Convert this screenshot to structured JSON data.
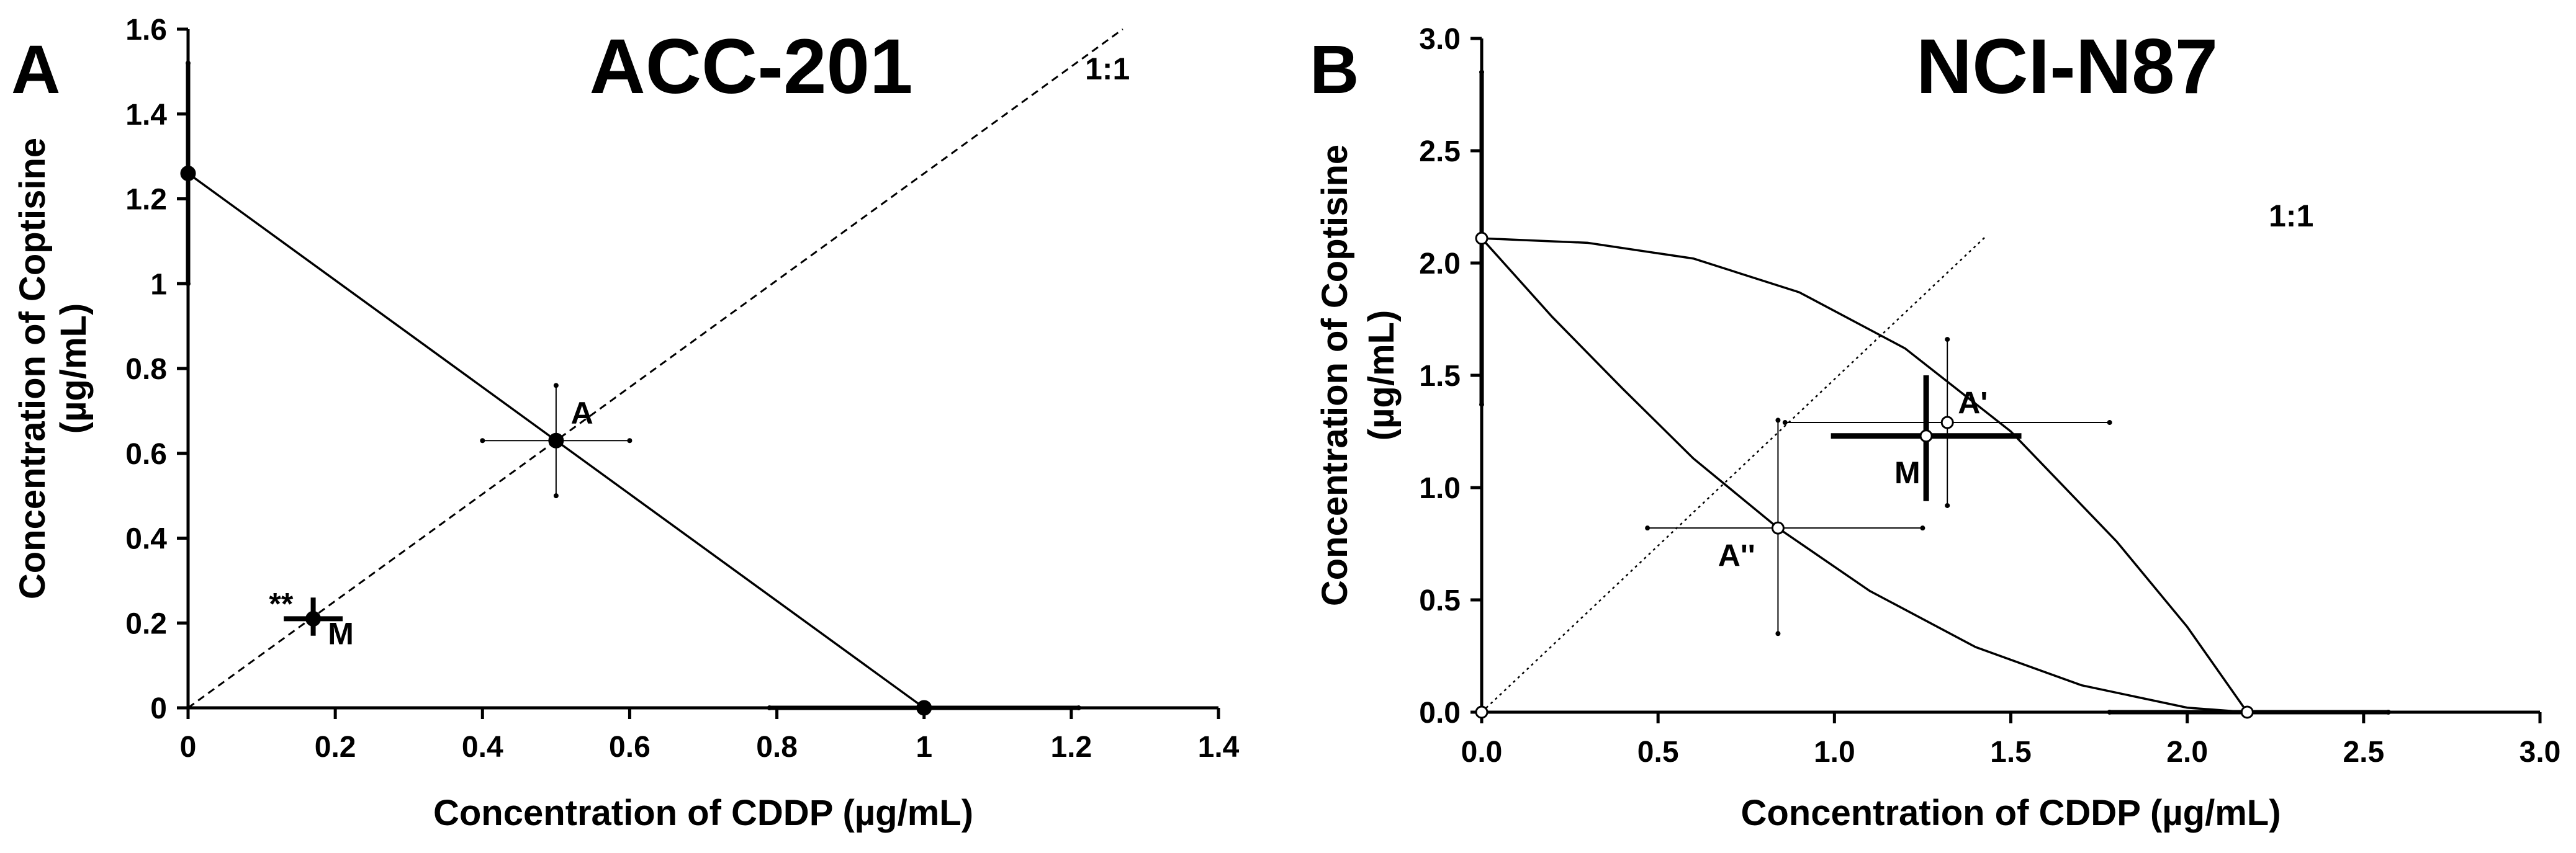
{
  "chart_data": [
    {
      "type": "scatter",
      "panel_label": "A",
      "title": "ACC-201",
      "xlabel": "Concentration of CDDP (µg/mL)",
      "ylabel_line1": "Concentration of Coptisine",
      "ylabel_line2": "(µg/mL)",
      "xlim": [
        0,
        1.4
      ],
      "ylim": [
        0,
        1.6
      ],
      "xticks": [
        0,
        0.2,
        0.4,
        0.6,
        0.8,
        1,
        1.2,
        1.4
      ],
      "xtick_labels": [
        "0",
        "0.2",
        "0.4",
        "0.6",
        "0.8",
        "1",
        "1.2",
        "1.4"
      ],
      "yticks": [
        0,
        0.2,
        0.4,
        0.6,
        0.8,
        1,
        1.2,
        1.4,
        1.6
      ],
      "ytick_labels": [
        "0",
        "0.2",
        "0.4",
        "0.6",
        "0.8",
        "1",
        "1.2",
        "1.4",
        "1.6"
      ],
      "diagonal_label": "1:1",
      "diagonal_end": [
        1.27,
        1.6
      ],
      "additivity_line": [
        [
          0,
          1.26
        ],
        [
          1.0,
          0
        ]
      ],
      "points": [
        {
          "name": "ic50-coptisine",
          "x": 0,
          "y": 1.26,
          "xerr": [
            0,
            0
          ],
          "yerr": [
            1.0,
            1.52
          ]
        },
        {
          "name": "ic50-cddp",
          "x": 1.0,
          "y": 0,
          "xerr": [
            0.79,
            1.21
          ],
          "yerr": [
            0,
            0
          ]
        },
        {
          "name": "A",
          "x": 0.5,
          "y": 0.63,
          "xerr": [
            0.4,
            0.6
          ],
          "yerr": [
            0.5,
            0.76
          ]
        },
        {
          "name": "M",
          "x": 0.17,
          "y": 0.21,
          "xerr": [
            0.13,
            0.21
          ],
          "yerr": [
            0.17,
            0.26
          ]
        }
      ],
      "annotations": [
        {
          "text": "A",
          "x": 0.52,
          "y": 0.67
        },
        {
          "text": "M",
          "x": 0.19,
          "y": 0.15
        },
        {
          "text": "**",
          "x": 0.11,
          "y": 0.22
        }
      ]
    },
    {
      "type": "scatter",
      "panel_label": "B",
      "title": "NCI-N87",
      "xlabel": "Concentration of CDDP (µg/mL)",
      "ylabel_line1": "Concentration of Coptisine",
      "ylabel_line2": "(µg/mL)",
      "xlim": [
        0,
        3.0
      ],
      "ylim": [
        0,
        3.0
      ],
      "xticks": [
        0,
        0.5,
        1.0,
        1.5,
        2.0,
        2.5,
        3.0
      ],
      "xtick_labels": [
        "0.0",
        "0.5",
        "1.0",
        "1.5",
        "2.0",
        "2.5",
        "3.0"
      ],
      "yticks": [
        0,
        0.5,
        1.0,
        1.5,
        2.0,
        2.5,
        3.0
      ],
      "ytick_labels": [
        "0.0",
        "0.5",
        "1.0",
        "1.5",
        "2.0",
        "2.5",
        "3.0"
      ],
      "diagonal_label": "1:1",
      "diagonal_end": [
        1.43,
        2.12
      ],
      "upper_curve": [
        [
          0,
          2.11
        ],
        [
          0.3,
          2.09
        ],
        [
          0.6,
          2.02
        ],
        [
          0.9,
          1.87
        ],
        [
          1.2,
          1.62
        ],
        [
          1.5,
          1.25
        ],
        [
          1.8,
          0.76
        ],
        [
          2.0,
          0.38
        ],
        [
          2.17,
          0
        ]
      ],
      "lower_curve": [
        [
          0,
          2.11
        ],
        [
          0.2,
          1.76
        ],
        [
          0.4,
          1.44
        ],
        [
          0.6,
          1.13
        ],
        [
          0.84,
          0.82
        ],
        [
          1.1,
          0.54
        ],
        [
          1.4,
          0.29
        ],
        [
          1.7,
          0.12
        ],
        [
          2.0,
          0.02
        ],
        [
          2.17,
          0
        ]
      ],
      "points": [
        {
          "name": "ic50-coptisine",
          "x": 0,
          "y": 2.11,
          "xerr": [
            0,
            0
          ],
          "yerr": [
            1.37,
            2.85
          ]
        },
        {
          "name": "ic50-cddp",
          "x": 2.17,
          "y": 0,
          "xerr": [
            1.78,
            2.57
          ],
          "yerr": [
            0,
            0
          ]
        },
        {
          "name": "origin",
          "x": 0,
          "y": 0,
          "xerr": [
            0,
            0
          ],
          "yerr": [
            0,
            0
          ]
        },
        {
          "name": "A-prime",
          "x": 1.32,
          "y": 1.29,
          "xerr": [
            0.86,
            1.78
          ],
          "yerr": [
            0.92,
            1.66
          ]
        },
        {
          "name": "A-double-prime",
          "x": 0.84,
          "y": 0.82,
          "xerr": [
            0.47,
            1.25
          ],
          "yerr": [
            0.35,
            1.3
          ]
        },
        {
          "name": "M",
          "x": 1.26,
          "y": 1.23,
          "xerr": [
            0.99,
            1.53
          ],
          "yerr": [
            0.94,
            1.5
          ]
        }
      ],
      "annotations": [
        {
          "text": "A'",
          "x": 1.35,
          "y": 1.33
        },
        {
          "text": "A''",
          "x": 0.67,
          "y": 0.65
        },
        {
          "text": "M",
          "x": 1.17,
          "y": 1.02
        }
      ]
    }
  ]
}
